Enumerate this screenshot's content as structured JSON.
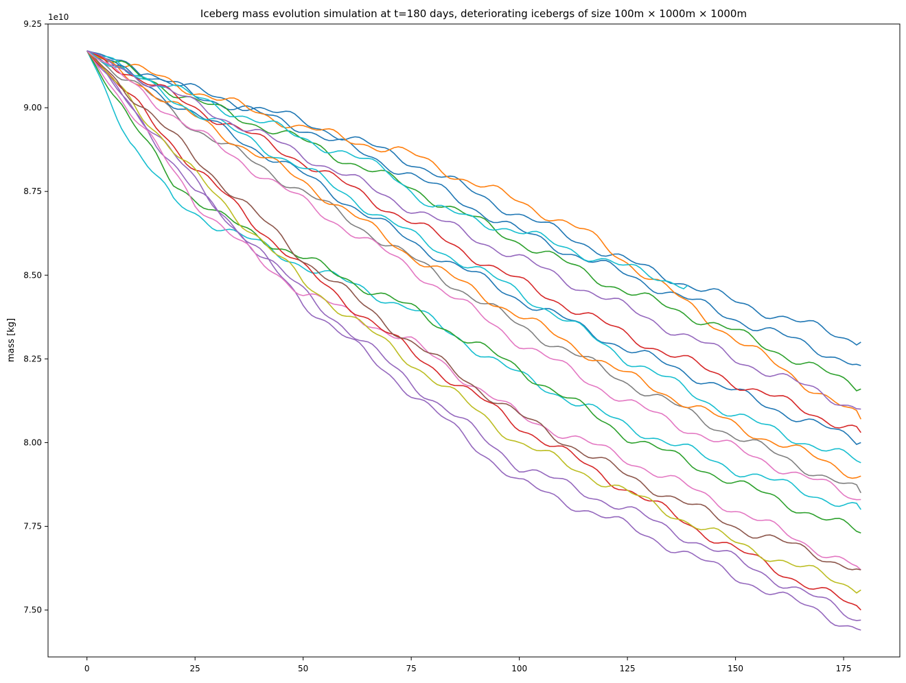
{
  "chart_data": {
    "type": "line",
    "title": "Iceberg mass evolution simulation at t=180 days, deteriorating icebergs of size 100m × 1000m × 1000m",
    "xlabel": "",
    "ylabel": "mass [kg]",
    "y_offset_label": "1e10",
    "xlim": [
      -9,
      188
    ],
    "ylim": [
      7.36,
      9.25
    ],
    "y_scale_factor": 10000000000,
    "x_ticks": [
      0,
      25,
      50,
      75,
      100,
      125,
      150,
      175
    ],
    "x_tick_labels": [
      "0",
      "25",
      "50",
      "75",
      "100",
      "125",
      "150",
      "175"
    ],
    "y_ticks": [
      7.5,
      7.75,
      8.0,
      8.25,
      8.5,
      8.75,
      9.0,
      9.25
    ],
    "y_tick_labels": [
      "7.50",
      "7.75",
      "8.00",
      "8.25",
      "8.50",
      "8.75",
      "9.00",
      "9.25"
    ],
    "grid": false,
    "legend": "none",
    "series_count_estimate": 300,
    "start_value": 9.17,
    "end_day": 179,
    "end_value_range": [
      7.45,
      8.3
    ],
    "color_cycle": [
      "#1f77b4",
      "#ff7f0e",
      "#2ca02c",
      "#d62728",
      "#9467bd",
      "#8c564b",
      "#e377c2",
      "#7f7f7f",
      "#bcbd22",
      "#17becf"
    ],
    "series": [
      {
        "color": "#1f77b4",
        "x": [
          0,
          25,
          50,
          75,
          100,
          125,
          150,
          179
        ],
        "values": [
          9.17,
          9.05,
          8.96,
          8.84,
          8.68,
          8.54,
          8.42,
          8.3
        ]
      },
      {
        "color": "#1f77b4",
        "x": [
          0,
          25,
          50,
          75,
          100,
          125,
          150,
          179
        ],
        "values": [
          9.17,
          9.04,
          8.94,
          8.8,
          8.63,
          8.5,
          8.37,
          8.23
        ]
      },
      {
        "color": "#ff7f0e",
        "x": [
          0,
          25,
          50,
          75,
          85,
          100,
          115,
          125,
          135,
          150,
          179
        ],
        "values": [
          9.17,
          9.05,
          8.94,
          8.86,
          8.8,
          8.72,
          8.63,
          8.54,
          8.45,
          8.31,
          8.07
        ]
      },
      {
        "color": "#2ca02c",
        "x": [
          0,
          25,
          50,
          75,
          100,
          125,
          150,
          179
        ],
        "values": [
          9.17,
          9.02,
          8.9,
          8.76,
          8.6,
          8.45,
          8.33,
          8.16
        ]
      },
      {
        "color": "#17becf",
        "x": [
          0,
          25,
          50,
          70,
          80,
          100,
          125,
          139
        ],
        "values": [
          9.17,
          9.03,
          8.91,
          8.81,
          8.7,
          8.63,
          8.52,
          8.47
        ]
      },
      {
        "color": "#17becf",
        "x": [
          0,
          10,
          20,
          30,
          50,
          75,
          100,
          125,
          150,
          179
        ],
        "values": [
          9.17,
          8.9,
          8.72,
          8.65,
          8.53,
          8.4,
          8.2,
          8.05,
          7.92,
          7.8
        ]
      },
      {
        "color": "#2ca02c",
        "x": [
          0,
          10,
          20,
          30,
          50,
          75,
          100,
          125,
          150,
          179
        ],
        "values": [
          9.17,
          8.96,
          8.78,
          8.68,
          8.55,
          8.4,
          8.22,
          8.02,
          7.88,
          7.73
        ]
      },
      {
        "color": "#9467bd",
        "x": [
          0,
          25,
          50,
          75,
          100,
          125,
          150,
          179
        ],
        "values": [
          9.17,
          8.75,
          8.45,
          8.18,
          7.93,
          7.8,
          7.65,
          7.47
        ]
      },
      {
        "color": "#9467bd",
        "x": [
          0,
          25,
          50,
          75,
          100,
          125,
          150,
          179
        ],
        "values": [
          9.17,
          8.78,
          8.42,
          8.15,
          7.88,
          7.75,
          7.6,
          7.44
        ]
      },
      {
        "color": "#e377c2",
        "x": [
          0,
          25,
          40,
          50,
          75,
          100,
          125,
          150,
          179
        ],
        "values": [
          9.17,
          8.72,
          8.54,
          8.45,
          8.3,
          8.08,
          7.95,
          7.8,
          7.62
        ]
      },
      {
        "color": "#d62728",
        "x": [
          0,
          25,
          50,
          75,
          100,
          125,
          150,
          179
        ],
        "values": [
          9.17,
          8.82,
          8.52,
          8.27,
          8.05,
          7.86,
          7.68,
          7.5
        ]
      },
      {
        "color": "#bcbd22",
        "x": [
          0,
          25,
          50,
          75,
          100,
          125,
          150,
          179
        ],
        "values": [
          9.17,
          8.8,
          8.48,
          8.24,
          8.0,
          7.85,
          7.7,
          7.56
        ]
      },
      {
        "color": "#8c564b",
        "x": [
          0,
          25,
          50,
          75,
          100,
          125,
          150,
          179
        ],
        "values": [
          9.17,
          8.85,
          8.55,
          8.3,
          8.08,
          7.9,
          7.75,
          7.62
        ]
      },
      {
        "color": "#7f7f7f",
        "x": [
          0,
          25,
          50,
          75,
          100,
          125,
          150,
          179
        ],
        "values": [
          9.17,
          8.94,
          8.75,
          8.55,
          8.35,
          8.18,
          8.02,
          7.85
        ]
      },
      {
        "color": "#1f77b4",
        "x": [
          0,
          25,
          50,
          75,
          100,
          125,
          150,
          179
        ],
        "values": [
          9.17,
          8.98,
          8.8,
          8.6,
          8.43,
          8.28,
          8.15,
          8.0
        ]
      },
      {
        "color": "#ff7f0e",
        "x": [
          0,
          25,
          50,
          75,
          100,
          125,
          150,
          179
        ],
        "values": [
          9.17,
          8.97,
          8.78,
          8.56,
          8.38,
          8.2,
          8.05,
          7.9
        ]
      },
      {
        "color": "#d62728",
        "x": [
          0,
          25,
          50,
          75,
          100,
          125,
          150,
          179
        ],
        "values": [
          9.17,
          9.0,
          8.84,
          8.66,
          8.48,
          8.32,
          8.18,
          8.03
        ]
      },
      {
        "color": "#17becf",
        "x": [
          0,
          25,
          50,
          75,
          100,
          125,
          150,
          179
        ],
        "values": [
          9.17,
          8.99,
          8.82,
          8.62,
          8.45,
          8.25,
          8.08,
          7.94
        ]
      },
      {
        "color": "#e377c2",
        "x": [
          0,
          25,
          50,
          75,
          100,
          125,
          150,
          179
        ],
        "values": [
          9.17,
          8.93,
          8.72,
          8.52,
          8.3,
          8.12,
          7.98,
          7.83
        ]
      },
      {
        "color": "#9467bd",
        "x": [
          0,
          25,
          50,
          75,
          100,
          125,
          150,
          179
        ],
        "values": [
          9.17,
          9.01,
          8.86,
          8.7,
          8.55,
          8.4,
          8.25,
          8.1
        ]
      }
    ]
  }
}
